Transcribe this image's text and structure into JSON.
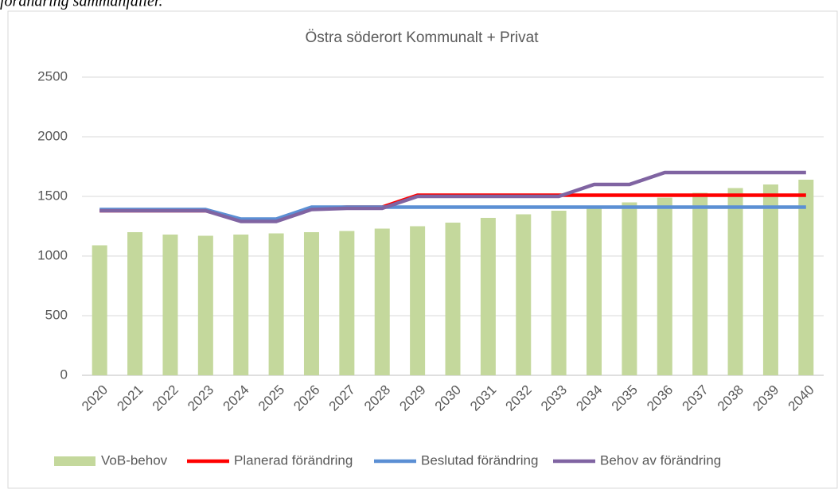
{
  "caption": "förändring sammanfaller.",
  "chart_data": {
    "type": "bar",
    "title": "Östra söderort Kommunalt + Privat",
    "categories": [
      "2020",
      "2021",
      "2022",
      "2023",
      "2024",
      "2025",
      "2026",
      "2027",
      "2028",
      "2029",
      "2030",
      "2031",
      "2032",
      "2033",
      "2034",
      "2035",
      "2036",
      "2037",
      "2038",
      "2039",
      "2040"
    ],
    "series": [
      {
        "name": "VoB-behov",
        "type": "bar",
        "color": "#c4d89c",
        "values": [
          1090,
          1200,
          1180,
          1170,
          1180,
          1190,
          1200,
          1210,
          1230,
          1250,
          1280,
          1320,
          1350,
          1380,
          1420,
          1450,
          1490,
          1530,
          1570,
          1600,
          1640
        ]
      },
      {
        "name": "Planerad förändring",
        "type": "line",
        "color": "#ff0000",
        "values": [
          1380,
          1380,
          1380,
          1380,
          1300,
          1300,
          1400,
          1410,
          1410,
          1510,
          1510,
          1510,
          1510,
          1510,
          1510,
          1510,
          1510,
          1510,
          1510,
          1510,
          1510
        ]
      },
      {
        "name": "Beslutad förändring",
        "type": "line",
        "color": "#5b8fd4",
        "values": [
          1390,
          1390,
          1390,
          1390,
          1310,
          1310,
          1410,
          1410,
          1410,
          1410,
          1410,
          1410,
          1410,
          1410,
          1410,
          1410,
          1410,
          1410,
          1410,
          1410,
          1410
        ]
      },
      {
        "name": "Behov av förändring",
        "type": "line",
        "color": "#8064a2",
        "values": [
          1380,
          1380,
          1380,
          1380,
          1290,
          1290,
          1390,
          1400,
          1400,
          1500,
          1500,
          1500,
          1500,
          1500,
          1600,
          1600,
          1700,
          1700,
          1700,
          1700,
          1700
        ]
      }
    ],
    "ylim": [
      0,
      2500
    ],
    "yticks": [
      0,
      500,
      1000,
      1500,
      2000,
      2500
    ],
    "grid": true,
    "legend": "bottom"
  }
}
